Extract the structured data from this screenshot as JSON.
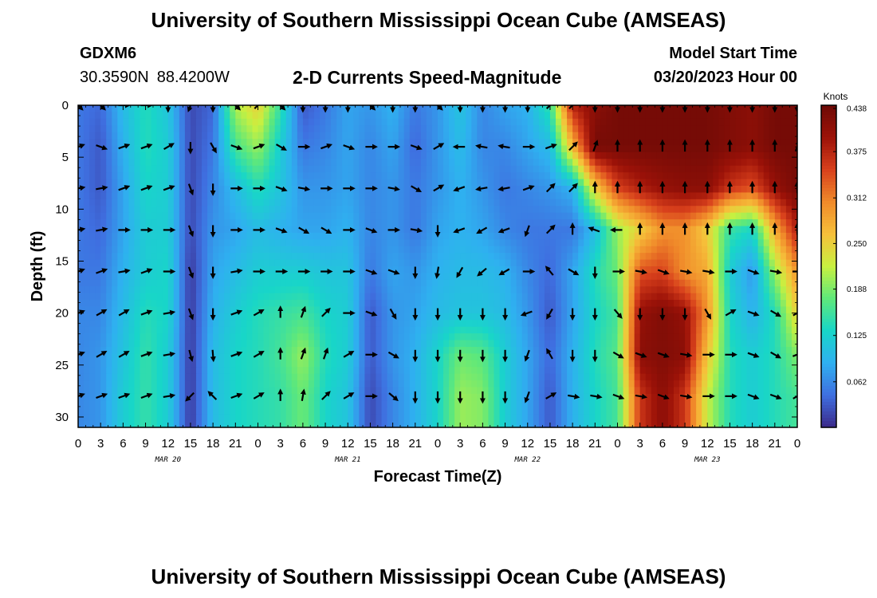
{
  "header": {
    "title": "University of Southern Mississippi Ocean Cube (AMSEAS)",
    "station": "GDXM6",
    "latitude": "30.3590N",
    "longitude": "88.4200W",
    "subtitle": "2-D Currents Speed-Magnitude",
    "model_start_label": "Model Start Time",
    "model_start_value": "03/20/2023 Hour 00"
  },
  "footer": {
    "title": "University of Southern Mississippi Ocean Cube (AMSEAS)"
  },
  "colors": {
    "colormap": [
      "#3b2a8a",
      "#3f6fe0",
      "#2fb0f0",
      "#18d6c8",
      "#5fe87a",
      "#c8f040",
      "#f6c03a",
      "#f08a2a",
      "#d8401c",
      "#9c1208",
      "#6e0a06"
    ],
    "arrow": "#000000"
  },
  "chart_data": {
    "type": "heatmap",
    "title": "2-D Currents Speed-Magnitude",
    "xlabel": "Forecast Time(Z)",
    "ylabel": "Depth (ft)",
    "x_hours": [
      0,
      3,
      6,
      9,
      12,
      15,
      18,
      21,
      24,
      27,
      30,
      33,
      36,
      39,
      42,
      45,
      48,
      51,
      54,
      57,
      60,
      63,
      66,
      69,
      72,
      75,
      78,
      81,
      84,
      87,
      90,
      93,
      96
    ],
    "x_tick_labels": [
      "0",
      "3",
      "6",
      "9",
      "12",
      "15",
      "18",
      "21",
      "0",
      "3",
      "6",
      "9",
      "12",
      "15",
      "18",
      "21",
      "0",
      "3",
      "6",
      "9",
      "12",
      "15",
      "18",
      "21",
      "0",
      "3",
      "6",
      "9",
      "12",
      "15",
      "18",
      "21",
      "0"
    ],
    "day_labels": [
      {
        "hour": 12,
        "label": "MAR 20"
      },
      {
        "hour": 36,
        "label": "MAR 21"
      },
      {
        "hour": 60,
        "label": "MAR 22"
      },
      {
        "hour": 84,
        "label": "MAR 23"
      }
    ],
    "ylim": [
      31,
      0
    ],
    "y_ticks": [
      0,
      5,
      10,
      15,
      20,
      25,
      30
    ],
    "colorbar": {
      "label": "Knots",
      "min": 0,
      "max": 0.438,
      "ticks": [
        "0.438",
        "0.375",
        "0.312",
        "0.250",
        "0.188",
        "0.125",
        "0.062"
      ],
      "tick_values": [
        0.438,
        0.375,
        0.312,
        0.25,
        0.188,
        0.125,
        0.062
      ]
    },
    "depths": [
      0,
      4,
      8,
      12,
      16,
      20,
      24,
      28
    ],
    "speed_knots": [
      [
        0.05,
        0.04,
        0.1,
        0.14,
        0.11,
        0.02,
        0.04,
        0.21,
        0.25,
        0.15,
        0.03,
        0.05,
        0.08,
        0.07,
        0.09,
        0.05,
        0.07,
        0.11,
        0.06,
        0.08,
        0.09,
        0.15,
        0.38,
        0.41,
        0.43,
        0.43,
        0.43,
        0.43,
        0.43,
        0.42,
        0.41,
        0.43,
        0.43
      ],
      [
        0.05,
        0.03,
        0.09,
        0.14,
        0.12,
        0.02,
        0.05,
        0.16,
        0.2,
        0.12,
        0.05,
        0.06,
        0.08,
        0.06,
        0.08,
        0.04,
        0.07,
        0.1,
        0.06,
        0.06,
        0.08,
        0.1,
        0.27,
        0.43,
        0.43,
        0.43,
        0.43,
        0.43,
        0.43,
        0.42,
        0.41,
        0.43,
        0.43
      ],
      [
        0.05,
        0.03,
        0.08,
        0.13,
        0.12,
        0.02,
        0.06,
        0.1,
        0.14,
        0.11,
        0.07,
        0.07,
        0.08,
        0.06,
        0.07,
        0.05,
        0.07,
        0.09,
        0.07,
        0.05,
        0.06,
        0.07,
        0.09,
        0.25,
        0.35,
        0.38,
        0.4,
        0.41,
        0.41,
        0.36,
        0.34,
        0.4,
        0.43
      ],
      [
        0.05,
        0.04,
        0.08,
        0.12,
        0.12,
        0.02,
        0.07,
        0.08,
        0.1,
        0.09,
        0.08,
        0.08,
        0.09,
        0.06,
        0.07,
        0.05,
        0.08,
        0.09,
        0.08,
        0.06,
        0.05,
        0.05,
        0.05,
        0.1,
        0.2,
        0.25,
        0.3,
        0.3,
        0.25,
        0.15,
        0.13,
        0.28,
        0.38
      ],
      [
        0.05,
        0.05,
        0.09,
        0.12,
        0.13,
        0.01,
        0.08,
        0.1,
        0.12,
        0.12,
        0.12,
        0.11,
        0.11,
        0.05,
        0.08,
        0.07,
        0.09,
        0.1,
        0.1,
        0.09,
        0.06,
        0.04,
        0.08,
        0.14,
        0.18,
        0.34,
        0.35,
        0.3,
        0.28,
        0.12,
        0.07,
        0.2,
        0.3
      ],
      [
        0.06,
        0.06,
        0.1,
        0.14,
        0.13,
        0.01,
        0.09,
        0.12,
        0.14,
        0.15,
        0.16,
        0.13,
        0.12,
        0.03,
        0.07,
        0.08,
        0.1,
        0.11,
        0.11,
        0.1,
        0.07,
        0.03,
        0.08,
        0.13,
        0.16,
        0.4,
        0.42,
        0.4,
        0.3,
        0.13,
        0.09,
        0.14,
        0.25
      ],
      [
        0.06,
        0.07,
        0.11,
        0.15,
        0.12,
        0.01,
        0.1,
        0.13,
        0.14,
        0.16,
        0.2,
        0.14,
        0.12,
        0.03,
        0.07,
        0.09,
        0.13,
        0.18,
        0.17,
        0.12,
        0.08,
        0.04,
        0.09,
        0.14,
        0.17,
        0.41,
        0.42,
        0.41,
        0.26,
        0.14,
        0.12,
        0.14,
        0.19
      ],
      [
        0.06,
        0.07,
        0.12,
        0.15,
        0.12,
        0.01,
        0.1,
        0.13,
        0.14,
        0.15,
        0.18,
        0.13,
        0.11,
        0.02,
        0.06,
        0.09,
        0.13,
        0.2,
        0.19,
        0.12,
        0.08,
        0.03,
        0.09,
        0.13,
        0.16,
        0.36,
        0.41,
        0.36,
        0.22,
        0.14,
        0.12,
        0.14,
        0.16
      ]
    ],
    "direction_deg": [
      [
        135,
        135,
        90,
        90,
        180,
        200,
        180,
        135,
        45,
        135,
        180,
        180,
        180,
        135,
        180,
        180,
        135,
        180,
        180,
        180,
        180,
        45,
        45,
        180,
        180,
        180,
        180,
        180,
        180,
        180,
        180,
        180,
        180
      ],
      [
        70,
        110,
        70,
        70,
        60,
        180,
        150,
        110,
        70,
        120,
        90,
        70,
        110,
        90,
        90,
        110,
        60,
        270,
        280,
        280,
        90,
        70,
        45,
        20,
        0,
        0,
        0,
        0,
        0,
        0,
        0,
        0,
        20
      ],
      [
        80,
        80,
        70,
        70,
        70,
        160,
        180,
        90,
        90,
        110,
        100,
        90,
        90,
        90,
        100,
        120,
        60,
        250,
        260,
        260,
        70,
        45,
        45,
        0,
        0,
        0,
        0,
        0,
        0,
        0,
        0,
        0,
        0
      ],
      [
        80,
        80,
        90,
        90,
        90,
        160,
        180,
        90,
        90,
        110,
        120,
        120,
        90,
        110,
        90,
        100,
        180,
        250,
        240,
        250,
        200,
        45,
        0,
        290,
        270,
        0,
        0,
        0,
        0,
        0,
        0,
        0,
        0
      ],
      [
        70,
        70,
        80,
        70,
        90,
        160,
        180,
        80,
        90,
        90,
        90,
        90,
        90,
        110,
        110,
        180,
        190,
        210,
        230,
        240,
        90,
        320,
        120,
        180,
        90,
        100,
        110,
        100,
        100,
        90,
        110,
        100,
        90
      ],
      [
        70,
        60,
        60,
        70,
        80,
        160,
        180,
        70,
        60,
        0,
        20,
        45,
        90,
        110,
        150,
        180,
        180,
        180,
        180,
        180,
        250,
        210,
        180,
        180,
        140,
        180,
        180,
        180,
        150,
        60,
        110,
        120,
        60
      ],
      [
        70,
        60,
        60,
        70,
        80,
        165,
        175,
        70,
        60,
        0,
        20,
        20,
        60,
        90,
        120,
        180,
        180,
        180,
        180,
        180,
        200,
        330,
        180,
        180,
        120,
        110,
        110,
        100,
        90,
        90,
        110,
        120,
        70
      ],
      [
        70,
        70,
        70,
        70,
        80,
        225,
        315,
        70,
        60,
        0,
        10,
        45,
        60,
        90,
        130,
        180,
        180,
        180,
        180,
        180,
        200,
        60,
        100,
        100,
        110,
        100,
        110,
        100,
        90,
        90,
        110,
        110,
        60
      ]
    ]
  }
}
